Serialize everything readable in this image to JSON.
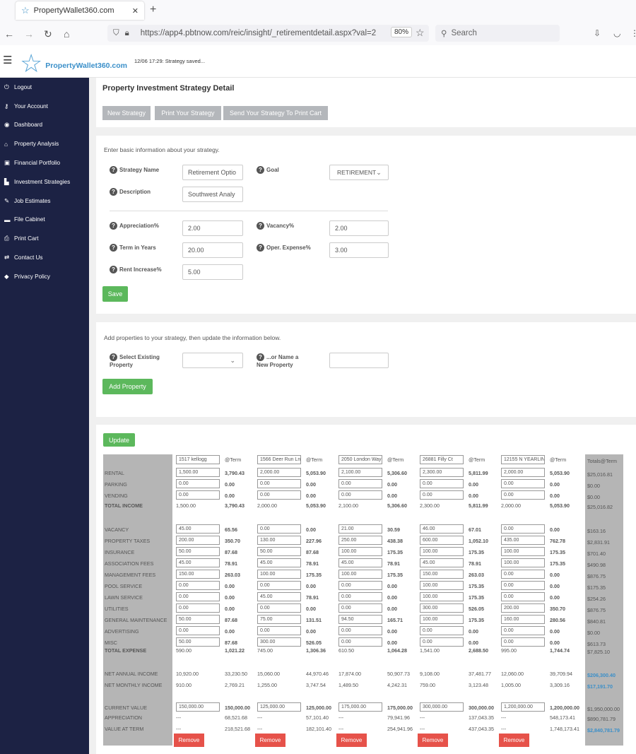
{
  "browser": {
    "tab_title": "PropertyWallet360.com",
    "url": "https://app4.pbtnow.com/reic/insight/_retirementdetail.aspx?val=2",
    "zoom": "80%",
    "search_placeholder": "Search"
  },
  "header": {
    "logo_text": "PropertyWallet360.com",
    "status": "12/06 17:29: Strategy saved..."
  },
  "sidebar": [
    {
      "label": "Logout",
      "icon": "power-icon",
      "glyph": "⏻"
    },
    {
      "label": "Your Account",
      "icon": "key-icon",
      "glyph": "⚷"
    },
    {
      "label": "Dashboard",
      "icon": "dashboard-icon",
      "glyph": "◉"
    },
    {
      "label": "Property Analysis",
      "icon": "home-icon",
      "glyph": "⌂"
    },
    {
      "label": "Financial Portfolio",
      "icon": "money-icon",
      "glyph": "▣"
    },
    {
      "label": "Investment Strategies",
      "icon": "building-icon",
      "glyph": "▙"
    },
    {
      "label": "Job Estimates",
      "icon": "wrench-icon",
      "glyph": "✎"
    },
    {
      "label": "File Cabinet",
      "icon": "folder-icon",
      "glyph": "▬"
    },
    {
      "label": "Print Cart",
      "icon": "print-icon",
      "glyph": "⎙"
    },
    {
      "label": "Contact Us",
      "icon": "exchange-icon",
      "glyph": "⇄"
    },
    {
      "label": "Privacy Policy",
      "icon": "shield-icon",
      "glyph": "◆"
    }
  ],
  "detail": {
    "title": "Property Investment Strategy Detail",
    "buttons": [
      "New Strategy",
      "Print Your Strategy",
      "Send Your Strategy To Print Cart"
    ]
  },
  "form": {
    "intro": "Enter basic information about your strategy.",
    "strategy_name_label": "Strategy Name",
    "strategy_name_value": "Retirement Optio",
    "goal_label": "Goal",
    "goal_value": "RETIREMENT",
    "description_label": "Description",
    "description_value": "Southwest Analy",
    "appreciation_label": "Appreciation%",
    "appreciation_value": "2.00",
    "vacancy_label": "Vacancy%",
    "vacancy_value": "2.00",
    "term_label": "Term in Years",
    "term_value": "20.00",
    "opex_label": "Oper. Expense%",
    "opex_value": "3.00",
    "rent_increase_label": "Rent Increase%",
    "rent_increase_value": "5.00",
    "save_label": "Save"
  },
  "add_property": {
    "intro": "Add properties to your strategy, then update the information below.",
    "select_label": "Select Existing Property",
    "select_label_l1": "Select Existing",
    "select_label_l2": "Property",
    "name_label_l1": "...or Name a",
    "name_label_l2": "New Property",
    "name_value": "",
    "add_label": "Add Property"
  },
  "grid": {
    "update_label": "Update",
    "at_term_label": "@Term",
    "totals_label": "Totals@Term",
    "remove_label": "Remove",
    "properties": [
      "1517 kellogg",
      "1566 Deer Run Ln",
      "2050 London Way",
      "26881 Filly Ct",
      "12155 N YEARLIN"
    ],
    "rows": [
      {
        "label": "RENTAL",
        "bold": false,
        "input": true,
        "vals": [
          [
            "1,500.00",
            "3,790.43"
          ],
          [
            "2,000.00",
            "5,053.90"
          ],
          [
            "2,100.00",
            "5,306.60"
          ],
          [
            "2,300.00",
            "5,811.99"
          ],
          [
            "2,000.00",
            "5,053.90"
          ]
        ],
        "total": "$25,016.81"
      },
      {
        "label": "PARKING",
        "bold": false,
        "input": true,
        "vals": [
          [
            "0.00",
            "0.00"
          ],
          [
            "0.00",
            "0.00"
          ],
          [
            "0.00",
            "0.00"
          ],
          [
            "0.00",
            "0.00"
          ],
          [
            "0.00",
            "0.00"
          ]
        ],
        "total": "$0.00"
      },
      {
        "label": "VENDING",
        "bold": false,
        "input": true,
        "vals": [
          [
            "0.00",
            "0.00"
          ],
          [
            "0.00",
            "0.00"
          ],
          [
            "0.00",
            "0.00"
          ],
          [
            "0.00",
            "0.00"
          ],
          [
            "0.00",
            "0.00"
          ]
        ],
        "total": "$0.00"
      },
      {
        "label": "TOTAL INCOME",
        "bold": true,
        "input": false,
        "vals": [
          [
            "1,500.00",
            "3,790.43"
          ],
          [
            "2,000.00",
            "5,053.90"
          ],
          [
            "2,100.00",
            "5,306.60"
          ],
          [
            "2,300.00",
            "5,811.99"
          ],
          [
            "2,000.00",
            "5,053.90"
          ]
        ],
        "total": "$25,016.82"
      },
      {
        "label": "VACANCY",
        "bold": false,
        "input": true,
        "vals": [
          [
            "45.00",
            "65.56"
          ],
          [
            "0.00",
            "0.00"
          ],
          [
            "21.00",
            "30.59"
          ],
          [
            "46.00",
            "67.01"
          ],
          [
            "0.00",
            "0.00"
          ]
        ],
        "total": "$163.16"
      },
      {
        "label": "PROPERTY TAXES",
        "bold": false,
        "input": true,
        "vals": [
          [
            "200.00",
            "350.70"
          ],
          [
            "130.00",
            "227.96"
          ],
          [
            "250.00",
            "438.38"
          ],
          [
            "600.00",
            "1,052.10"
          ],
          [
            "435.00",
            "762.78"
          ]
        ],
        "total": "$2,831.91"
      },
      {
        "label": "INSURANCE",
        "bold": false,
        "input": true,
        "vals": [
          [
            "50.00",
            "87.68"
          ],
          [
            "50.00",
            "87.68"
          ],
          [
            "100.00",
            "175.35"
          ],
          [
            "100.00",
            "175.35"
          ],
          [
            "100.00",
            "175.35"
          ]
        ],
        "total": "$701.40"
      },
      {
        "label": "ASSOCIATION FEES",
        "bold": false,
        "input": true,
        "vals": [
          [
            "45.00",
            "78.91"
          ],
          [
            "45.00",
            "78.91"
          ],
          [
            "45.00",
            "78.91"
          ],
          [
            "45.00",
            "78.91"
          ],
          [
            "100.00",
            "175.35"
          ]
        ],
        "total": "$490.98"
      },
      {
        "label": "MANAGEMENT FEES",
        "bold": false,
        "input": true,
        "vals": [
          [
            "150.00",
            "263.03"
          ],
          [
            "100.00",
            "175.35"
          ],
          [
            "100.00",
            "175.35"
          ],
          [
            "150.00",
            "263.03"
          ],
          [
            "0.00",
            "0.00"
          ]
        ],
        "total": "$876.75"
      },
      {
        "label": "POOL SERVICE",
        "bold": false,
        "input": true,
        "vals": [
          [
            "0.00",
            "0.00"
          ],
          [
            "0.00",
            "0.00"
          ],
          [
            "0.00",
            "0.00"
          ],
          [
            "100.00",
            "175.35"
          ],
          [
            "0.00",
            "0.00"
          ]
        ],
        "total": "$175.35"
      },
      {
        "label": "LAWN SERVICE",
        "bold": false,
        "input": true,
        "vals": [
          [
            "0.00",
            "0.00"
          ],
          [
            "45.00",
            "78.91"
          ],
          [
            "0.00",
            "0.00"
          ],
          [
            "100.00",
            "175.35"
          ],
          [
            "0.00",
            "0.00"
          ]
        ],
        "total": "$254.26"
      },
      {
        "label": "UTILITIES",
        "bold": false,
        "input": true,
        "vals": [
          [
            "0.00",
            "0.00"
          ],
          [
            "0.00",
            "0.00"
          ],
          [
            "0.00",
            "0.00"
          ],
          [
            "300.00",
            "526.05"
          ],
          [
            "200.00",
            "350.70"
          ]
        ],
        "total": "$876.75"
      },
      {
        "label": "GENERAL MAINTENANCE",
        "bold": false,
        "input": true,
        "vals": [
          [
            "50.00",
            "87.68"
          ],
          [
            "75.00",
            "131.51"
          ],
          [
            "94.50",
            "165.71"
          ],
          [
            "100.00",
            "175.35"
          ],
          [
            "160.00",
            "280.56"
          ]
        ],
        "total": "$840.81"
      },
      {
        "label": "ADVERTISING",
        "bold": false,
        "input": true,
        "vals": [
          [
            "0.00",
            "0.00"
          ],
          [
            "0.00",
            "0.00"
          ],
          [
            "0.00",
            "0.00"
          ],
          [
            "0.00",
            "0.00"
          ],
          [
            "0.00",
            "0.00"
          ]
        ],
        "total": "$0.00"
      },
      {
        "label": "MISC",
        "bold": false,
        "input": true,
        "vals": [
          [
            "50.00",
            "87.68"
          ],
          [
            "300.00",
            "526.05"
          ],
          [
            "0.00",
            "0.00"
          ],
          [
            "0.00",
            "0.00"
          ],
          [
            "0.00",
            "0.00"
          ]
        ],
        "total": "$613.73"
      },
      {
        "label": "TOTAL EXPENSE",
        "bold": true,
        "input": false,
        "vals": [
          [
            "590.00",
            "1,021.22"
          ],
          [
            "745.00",
            "1,306.36"
          ],
          [
            "610.50",
            "1,064.28"
          ],
          [
            "1,541.00",
            "2,688.50"
          ],
          [
            "995.00",
            "1,744.74"
          ]
        ],
        "total": "$7,825.10"
      },
      {
        "label": "NET ANNUAL INCOME",
        "bold": false,
        "input": false,
        "vals": [
          [
            "10,920.00",
            "33,230.50"
          ],
          [
            "15,060.00",
            "44,970.46"
          ],
          [
            "17,874.00",
            "50,907.73"
          ],
          [
            "9,108.00",
            "37,481.77"
          ],
          [
            "12,060.00",
            "39,709.94"
          ]
        ],
        "total": "$206,300.40",
        "blue": true
      },
      {
        "label": "NET MONTHLY INCOME",
        "bold": false,
        "input": false,
        "vals": [
          [
            "910.00",
            "2,769.21"
          ],
          [
            "1,255.00",
            "3,747.54"
          ],
          [
            "1,489.50",
            "4,242.31"
          ],
          [
            "759.00",
            "3,123.48"
          ],
          [
            "1,005.00",
            "3,309.16"
          ]
        ],
        "total": "$17,191.70",
        "blue": true
      },
      {
        "label": "CURRENT VALUE",
        "bold": false,
        "input": true,
        "vals": [
          [
            "150,000.00",
            "150,000.00"
          ],
          [
            "125,000.00",
            "125,000.00"
          ],
          [
            "175,000.00",
            "175,000.00"
          ],
          [
            "300,000.00",
            "300,000.00"
          ],
          [
            "1,200,000.00",
            "1,200,000.00"
          ]
        ],
        "total": "$1,950,000.00"
      },
      {
        "label": "APPRECIATION",
        "bold": false,
        "input": false,
        "vals": [
          [
            "---",
            "68,521.68"
          ],
          [
            "---",
            "57,101.40"
          ],
          [
            "---",
            "79,941.96"
          ],
          [
            "---",
            "137,043.35"
          ],
          [
            "---",
            "548,173.41"
          ]
        ],
        "total": "$890,781.79"
      },
      {
        "label": "VALUE AT TERM",
        "bold": false,
        "input": false,
        "vals": [
          [
            "---",
            "218,521.68"
          ],
          [
            "---",
            "182,101.40"
          ],
          [
            "---",
            "254,941.96"
          ],
          [
            "---",
            "437,043.35"
          ],
          [
            "---",
            "1,748,173.41"
          ]
        ],
        "total": "$2,840,781.79",
        "blue": true
      }
    ]
  }
}
